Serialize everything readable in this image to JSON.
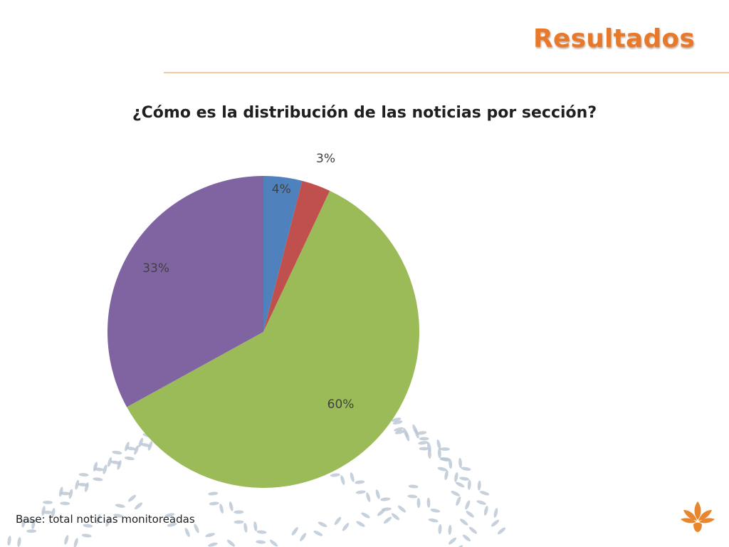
{
  "slide": {
    "title": "Resultados",
    "footnote": "Base: total noticias monitoreadas"
  },
  "colors": {
    "title": "#e8792a",
    "rule": "#f1c8a4",
    "pattern": "#b9c6d3",
    "logo": "#e8862e"
  },
  "icons": {
    "logo": "orange-flower-logo-icon",
    "background": "scattered-leaf-pattern"
  },
  "chart_data": {
    "type": "pie",
    "title": "¿Cómo es la distribución de las noticias por sección?",
    "legend": "none",
    "slices": [
      {
        "value": 4,
        "label": "4%",
        "color": "#4f81bd"
      },
      {
        "value": 3,
        "label": "3%",
        "color": "#c0504d"
      },
      {
        "value": 60,
        "label": "60%",
        "color": "#9bbb59"
      },
      {
        "value": 33,
        "label": "33%",
        "color": "#8064a2"
      }
    ]
  }
}
